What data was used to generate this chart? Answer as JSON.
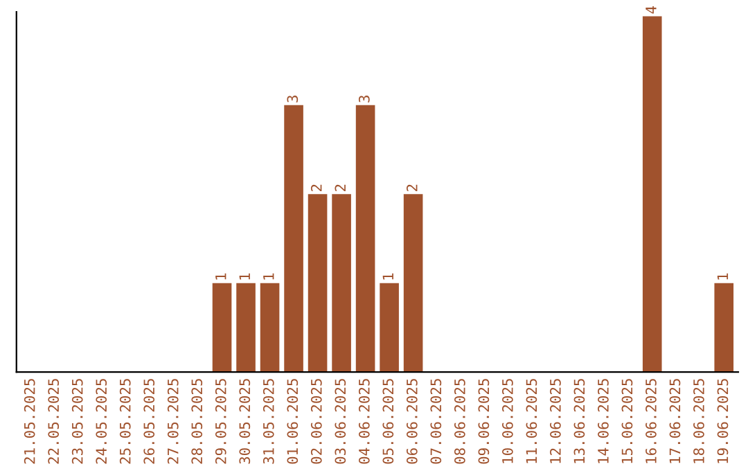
{
  "chart_data": {
    "type": "bar",
    "categories": [
      "21.05.2025",
      "22.05.2025",
      "23.05.2025",
      "24.05.2025",
      "25.05.2025",
      "26.05.2025",
      "27.05.2025",
      "28.05.2025",
      "29.05.2025",
      "30.05.2025",
      "31.05.2025",
      "01.06.2025",
      "02.06.2025",
      "03.06.2025",
      "04.06.2025",
      "05.06.2025",
      "06.06.2025",
      "07.06.2025",
      "08.06.2025",
      "09.06.2025",
      "10.06.2025",
      "11.06.2025",
      "12.06.2025",
      "13.06.2025",
      "14.06.2025",
      "15.06.2025",
      "16.06.2025",
      "17.06.2025",
      "18.06.2025",
      "19.06.2025"
    ],
    "values": [
      0,
      0,
      0,
      0,
      0,
      0,
      0,
      0,
      1,
      1,
      1,
      3,
      2,
      2,
      3,
      1,
      2,
      0,
      0,
      0,
      0,
      0,
      0,
      0,
      0,
      0,
      4,
      0,
      0,
      1
    ],
    "value_labels": [
      null,
      null,
      null,
      null,
      null,
      null,
      null,
      null,
      "1",
      "1",
      "1",
      "3",
      "2",
      "2",
      "3",
      "1",
      "2",
      null,
      null,
      null,
      null,
      null,
      null,
      null,
      null,
      null,
      "4",
      null,
      null,
      "1"
    ],
    "color": "#a0522d",
    "ylim": [
      0,
      4.05
    ],
    "tick_labels": "x",
    "grid": false
  }
}
